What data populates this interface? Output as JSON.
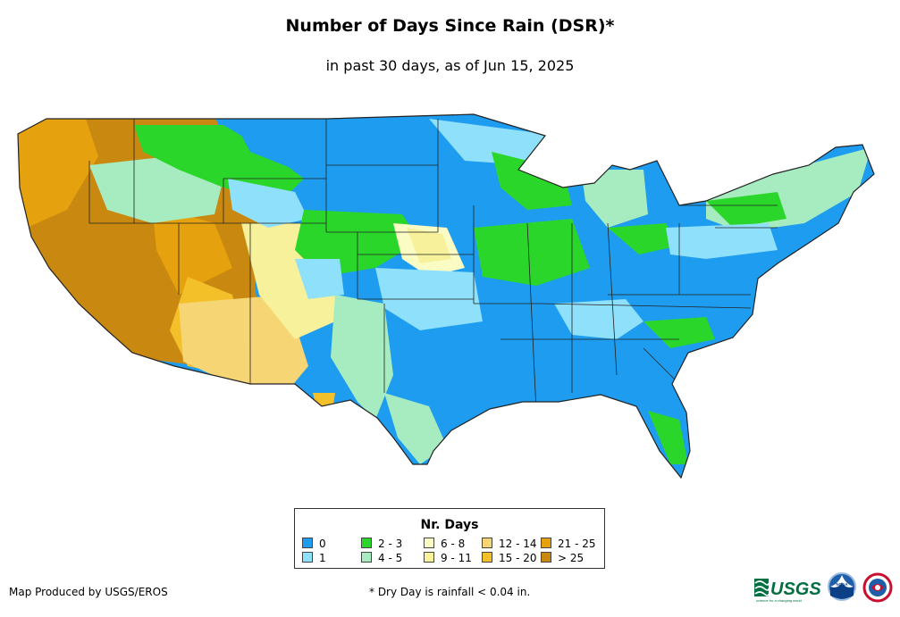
{
  "title": "Number of Days Since Rain (DSR)*",
  "subtitle": "in past 30 days, as of Jun 15, 2025",
  "legend": {
    "title": "Nr. Days",
    "items": [
      {
        "label": "0",
        "color": "#1e9cf0"
      },
      {
        "label": "1",
        "color": "#8fe0fa"
      },
      {
        "label": "2 - 3",
        "color": "#2bd62b"
      },
      {
        "label": "4 - 5",
        "color": "#a6ecc0"
      },
      {
        "label": "6 - 8",
        "color": "#fbfbc4"
      },
      {
        "label": "9 - 11",
        "color": "#f6f19a"
      },
      {
        "label": "12 - 14",
        "color": "#f6d575"
      },
      {
        "label": "15 - 20",
        "color": "#f4c02a"
      },
      {
        "label": "21 - 25",
        "color": "#e6a10e"
      },
      {
        "label": "> 25",
        "color": "#c98810"
      }
    ]
  },
  "credit": "Map Produced by USGS/EROS",
  "footnote": "* Dry Day is rainfall < 0.04 in.",
  "logos": {
    "usgs_text": "USGS",
    "usgs_tagline": "science for a changing world",
    "noaa_text": "NOAA"
  }
}
